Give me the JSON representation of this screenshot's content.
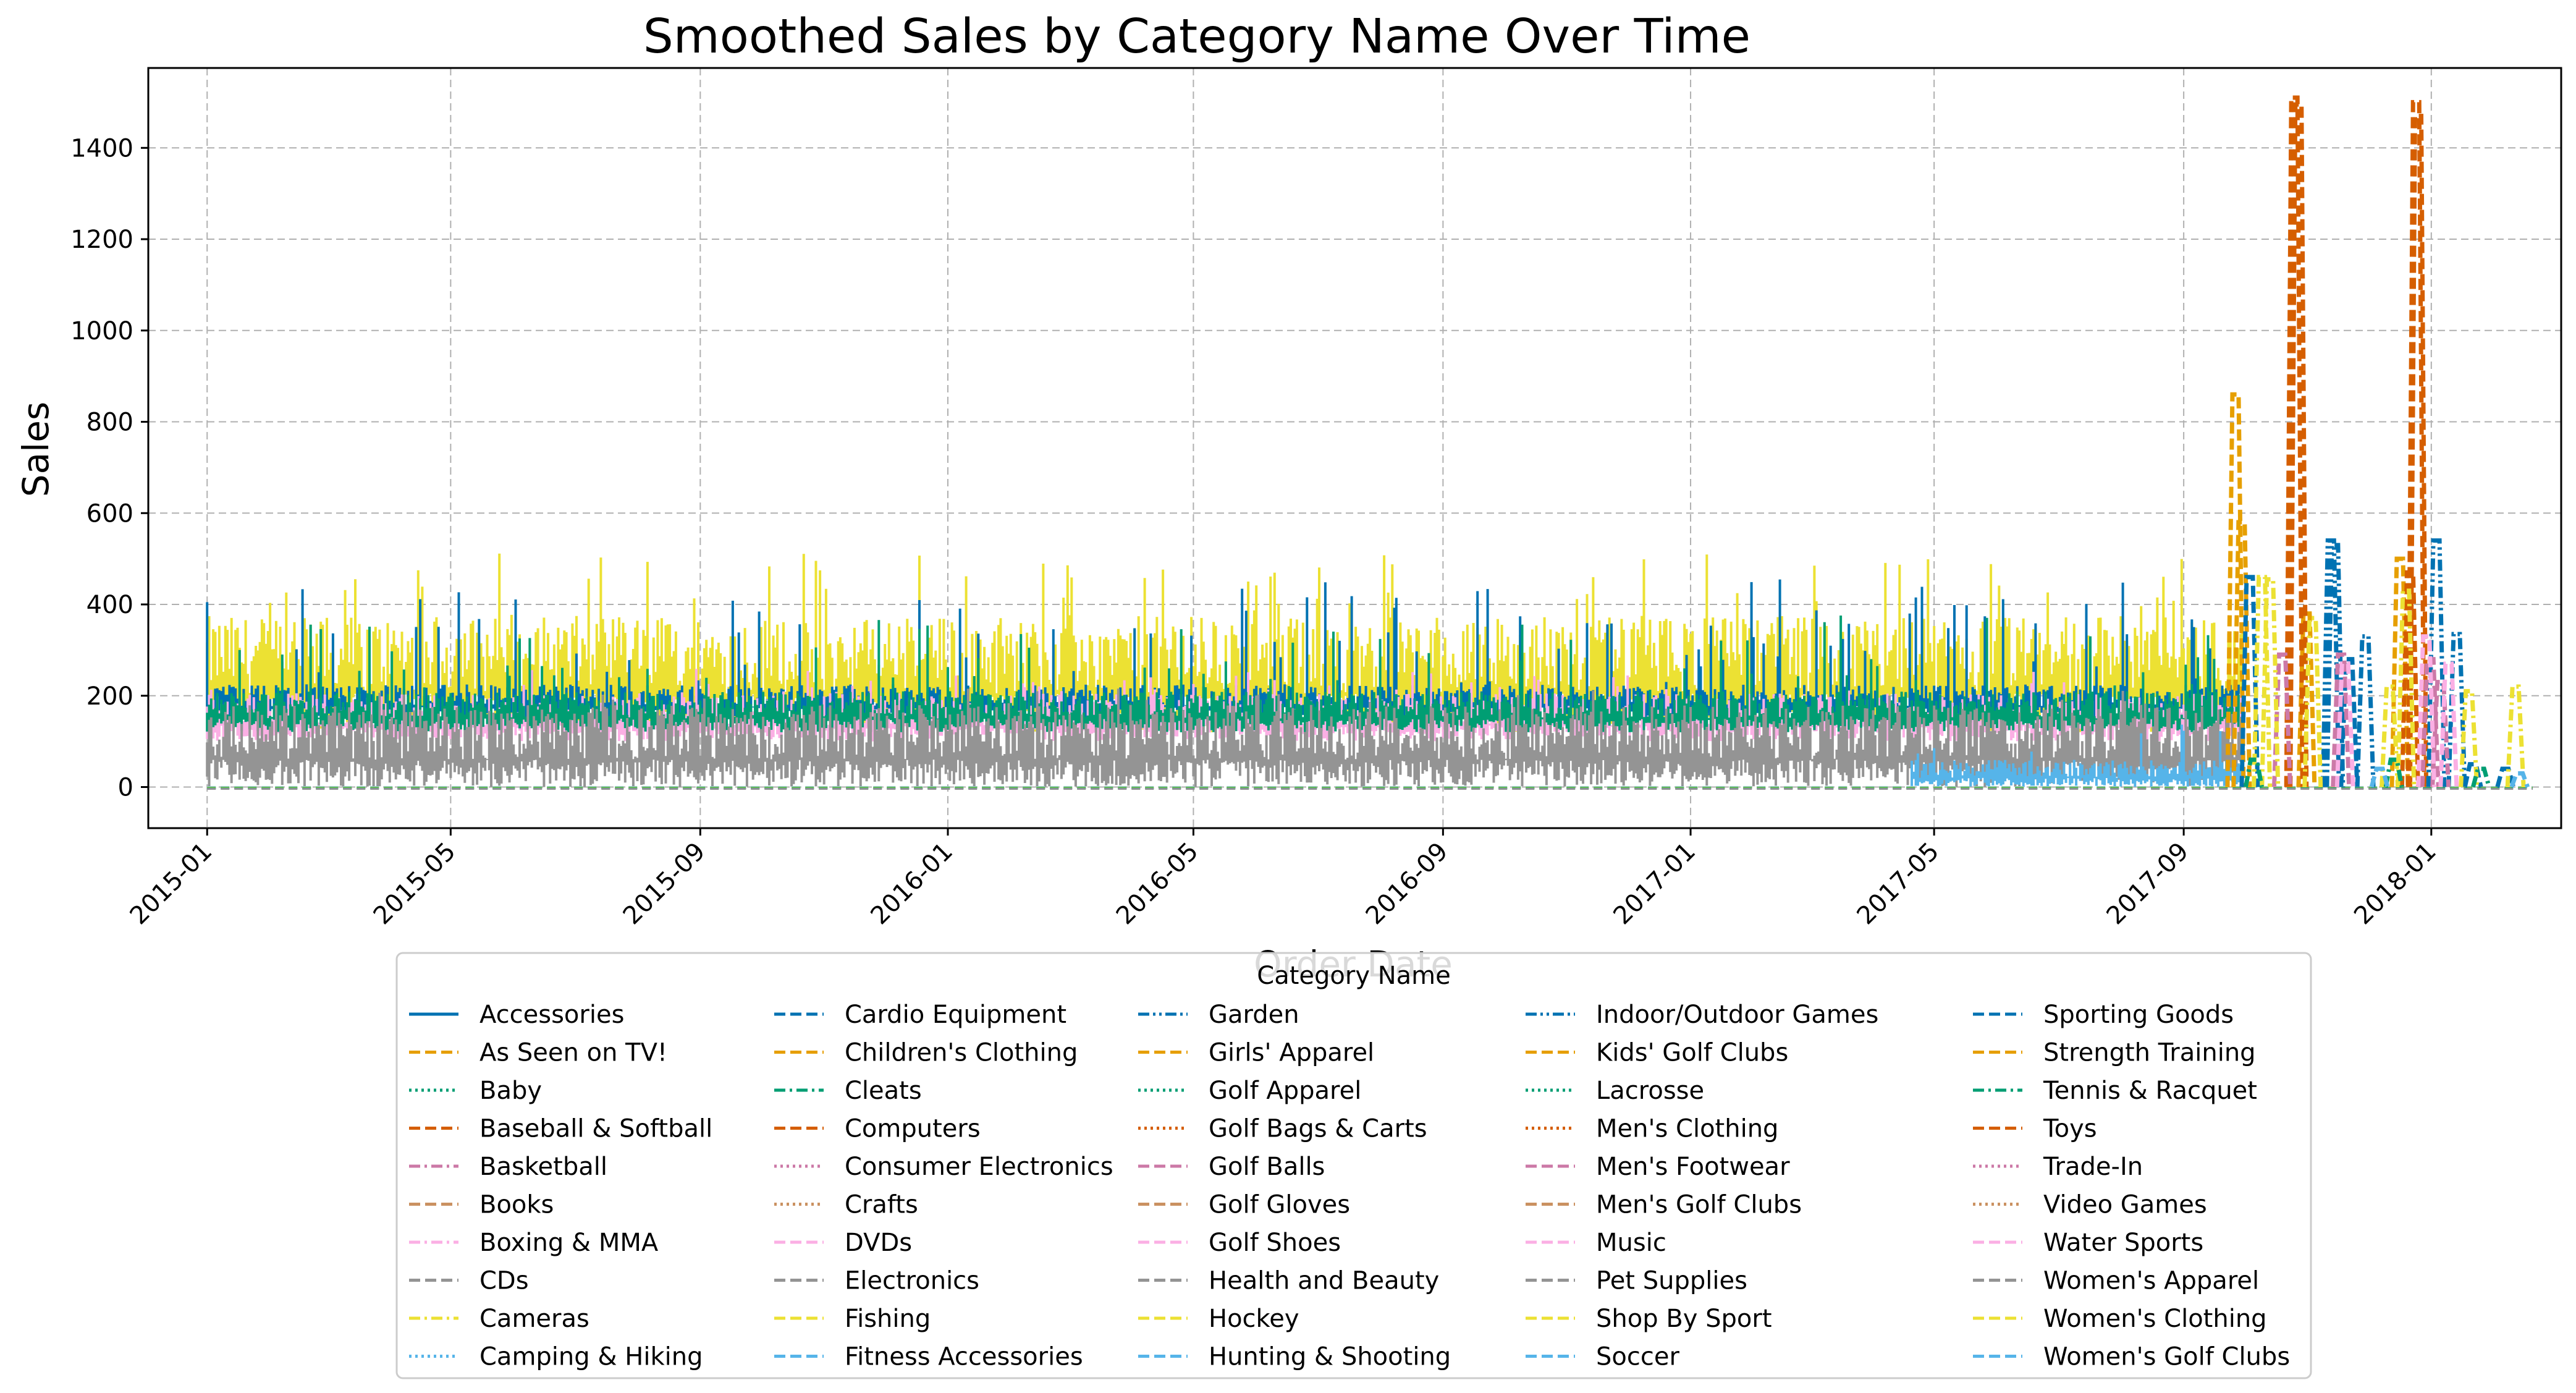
{
  "chart_data": {
    "type": "line",
    "title": "Smoothed Sales by Category Name Over Time",
    "xlabel": "Order Date",
    "ylabel": "Sales",
    "x_ticks": [
      "2015-01",
      "2015-05",
      "2015-09",
      "2016-01",
      "2016-05",
      "2016-09",
      "2017-01",
      "2017-05",
      "2017-09",
      "2018-01"
    ],
    "x_range": [
      "2014-12-03",
      "2018-03-06"
    ],
    "y_ticks": [
      0,
      200,
      400,
      600,
      800,
      1000,
      1200,
      1400
    ],
    "ylim": [
      -90,
      1575
    ],
    "grid": true,
    "legend_title": "Category Name",
    "legend_placement": "bottom-center",
    "legend_columns": 5,
    "series_meta": [
      {
        "name": "Accessories",
        "color": "#0072b2",
        "dash": "solid"
      },
      {
        "name": "As Seen on  TV!",
        "color": "#e69f00",
        "dash": "dashed"
      },
      {
        "name": "Baby",
        "color": "#009e73",
        "dash": "dotted"
      },
      {
        "name": "Baseball & Softball",
        "color": "#d55e00",
        "dash": "dashed"
      },
      {
        "name": "Basketball",
        "color": "#cc79a7",
        "dash": "dashdot"
      },
      {
        "name": "Books",
        "color": "#ca9161",
        "dash": "dashed"
      },
      {
        "name": "Boxing & MMA",
        "color": "#fbafe4",
        "dash": "dashdot"
      },
      {
        "name": "CDs",
        "color": "#949494",
        "dash": "dashed"
      },
      {
        "name": "Cameras",
        "color": "#ece133",
        "dash": "dashdot"
      },
      {
        "name": "Camping & Hiking",
        "color": "#56b4e9",
        "dash": "dotted"
      },
      {
        "name": "Cardio Equipment",
        "color": "#0072b2",
        "dash": "dashed"
      },
      {
        "name": "Children's Clothing",
        "color": "#e69f00",
        "dash": "dashed"
      },
      {
        "name": "Cleats",
        "color": "#009e73",
        "dash": "dashdot"
      },
      {
        "name": "Computers",
        "color": "#d55e00",
        "dash": "dashed"
      },
      {
        "name": "Consumer Electronics",
        "color": "#cc79a7",
        "dash": "dotted"
      },
      {
        "name": "Crafts",
        "color": "#ca9161",
        "dash": "dotted"
      },
      {
        "name": "DVDs",
        "color": "#fbafe4",
        "dash": "dashed"
      },
      {
        "name": "Electronics",
        "color": "#949494",
        "dash": "dashed"
      },
      {
        "name": "Fishing",
        "color": "#ece133",
        "dash": "dashed"
      },
      {
        "name": "Fitness Accessories",
        "color": "#56b4e9",
        "dash": "dashed"
      },
      {
        "name": "Garden",
        "color": "#0072b2",
        "dash": "dashdotdot"
      },
      {
        "name": "Girls' Apparel",
        "color": "#e69f00",
        "dash": "dashed"
      },
      {
        "name": "Golf Apparel",
        "color": "#009e73",
        "dash": "dotted"
      },
      {
        "name": "Golf Bags & Carts",
        "color": "#d55e00",
        "dash": "dotted"
      },
      {
        "name": "Golf Balls",
        "color": "#cc79a7",
        "dash": "dashed"
      },
      {
        "name": "Golf Gloves",
        "color": "#ca9161",
        "dash": "dashed"
      },
      {
        "name": "Golf Shoes",
        "color": "#fbafe4",
        "dash": "dashed"
      },
      {
        "name": "Health and Beauty",
        "color": "#949494",
        "dash": "dashed"
      },
      {
        "name": "Hockey",
        "color": "#ece133",
        "dash": "dashed"
      },
      {
        "name": "Hunting & Shooting",
        "color": "#56b4e9",
        "dash": "dashed"
      },
      {
        "name": "Indoor/Outdoor Games",
        "color": "#0072b2",
        "dash": "dashdotdot"
      },
      {
        "name": "Kids' Golf Clubs",
        "color": "#e69f00",
        "dash": "dashed"
      },
      {
        "name": "Lacrosse",
        "color": "#009e73",
        "dash": "dotted"
      },
      {
        "name": "Men's Clothing",
        "color": "#d55e00",
        "dash": "dotted"
      },
      {
        "name": "Men's Footwear",
        "color": "#cc79a7",
        "dash": "dashed"
      },
      {
        "name": "Men's Golf Clubs",
        "color": "#ca9161",
        "dash": "dashed"
      },
      {
        "name": "Music",
        "color": "#fbafe4",
        "dash": "dashed"
      },
      {
        "name": "Pet Supplies",
        "color": "#949494",
        "dash": "dashed"
      },
      {
        "name": "Shop By Sport",
        "color": "#ece133",
        "dash": "dashed"
      },
      {
        "name": "Soccer",
        "color": "#56b4e9",
        "dash": "dashed"
      },
      {
        "name": "Sporting Goods",
        "color": "#0072b2",
        "dash": "dashed"
      },
      {
        "name": "Strength Training",
        "color": "#e69f00",
        "dash": "dashed"
      },
      {
        "name": "Tennis & Racquet",
        "color": "#009e73",
        "dash": "dashdot"
      },
      {
        "name": "Toys",
        "color": "#d55e00",
        "dash": "dashed"
      },
      {
        "name": "Trade-In",
        "color": "#cc79a7",
        "dash": "dotted"
      },
      {
        "name": "Video Games",
        "color": "#ca9161",
        "dash": "dotted"
      },
      {
        "name": "Water Sports",
        "color": "#fbafe4",
        "dash": "dashed"
      },
      {
        "name": "Women's Apparel",
        "color": "#949494",
        "dash": "dashed"
      },
      {
        "name": "Women's Clothing",
        "color": "#ece133",
        "dash": "dashed"
      },
      {
        "name": "Women's Golf Clubs",
        "color": "#56b4e9",
        "dash": "dashed"
      }
    ],
    "dense_series": [
      {
        "name": "Cameras",
        "color": "#ece133",
        "x_start": "2015-01-01",
        "x_end": "2017-09-30",
        "min": 120,
        "typical": 290,
        "max": 520
      },
      {
        "name": "Accessories",
        "color": "#0072b2",
        "x_start": "2015-01-01",
        "x_end": "2017-09-30",
        "min": 150,
        "typical": 200,
        "max": 460
      },
      {
        "name": "Boxing & MMA",
        "color": "#fbafe4",
        "x_start": "2015-01-01",
        "x_end": "2017-09-30",
        "min": 100,
        "typical": 170,
        "max": 260
      },
      {
        "name": "Cleats",
        "color": "#009e73",
        "x_start": "2015-01-01",
        "x_end": "2017-09-30",
        "min": 120,
        "typical": 180,
        "max": 380
      },
      {
        "name": "CDs",
        "color": "#949494",
        "x_start": "2015-01-01",
        "x_end": "2017-09-30",
        "min": 0,
        "typical": 120,
        "max": 220
      },
      {
        "name": "Camping & Hiking",
        "color": "#56b4e9",
        "x_start": "2017-04-20",
        "x_end": "2017-09-30",
        "min": 0,
        "typical": 40,
        "max": 140
      }
    ],
    "spikes": [
      {
        "name": "Kids' Golf Clubs",
        "color": "#e69f00",
        "dash": "dashed",
        "points": [
          [
            "2017-09-25",
            860
          ],
          [
            "2017-09-28",
            580
          ],
          [
            "2017-10-30",
            380
          ],
          [
            "2017-12-15",
            500
          ]
        ]
      },
      {
        "name": "Baseball & Softball",
        "color": "#d55e00",
        "dash": "dashed",
        "points": [
          [
            "2017-10-24",
            1510
          ],
          [
            "2017-10-26",
            1495
          ],
          [
            "2017-12-23",
            1500
          ],
          [
            "2017-12-24",
            1470
          ],
          [
            "2017-12-20",
            470
          ]
        ]
      },
      {
        "name": "Garden",
        "color": "#0072b2",
        "dash": "dashdotdot",
        "points": [
          [
            "2017-11-11",
            540
          ],
          [
            "2017-11-13",
            530
          ],
          [
            "2017-11-28",
            330
          ],
          [
            "2018-01-02",
            540
          ],
          [
            "2018-01-12",
            335
          ]
        ]
      },
      {
        "name": "Sporting Goods",
        "color": "#0072b2",
        "dash": "dashed",
        "points": [
          [
            "2017-10-02",
            460
          ],
          [
            "2017-11-20",
            280
          ],
          [
            "2018-01-20",
            50
          ],
          [
            "2018-02-05",
            40
          ]
        ]
      },
      {
        "name": "Golf Balls",
        "color": "#cc79a7",
        "dash": "dashed",
        "points": [
          [
            "2017-10-18",
            290
          ],
          [
            "2017-11-16",
            290
          ],
          [
            "2017-12-30",
            280
          ],
          [
            "2018-01-04",
            230
          ]
        ]
      },
      {
        "name": "Golf Shoes",
        "color": "#fbafe4",
        "dash": "dashed",
        "points": [
          [
            "2017-11-18",
            270
          ],
          [
            "2017-12-28",
            330
          ],
          [
            "2018-01-08",
            270
          ]
        ]
      },
      {
        "name": "Cameras",
        "color": "#ece133",
        "dash": "dashdot",
        "points": [
          [
            "2017-10-08",
            460
          ],
          [
            "2017-10-12",
            455
          ],
          [
            "2017-11-02",
            370
          ],
          [
            "2017-12-10",
            220
          ],
          [
            "2017-12-18",
            430
          ],
          [
            "2018-01-18",
            210
          ],
          [
            "2018-02-10",
            220
          ]
        ]
      },
      {
        "name": "Cleats",
        "color": "#009e73",
        "dash": "dashdot",
        "points": [
          [
            "2017-10-04",
            60
          ],
          [
            "2017-12-12",
            60
          ],
          [
            "2018-01-24",
            40
          ]
        ]
      },
      {
        "name": "Fitness Accessories",
        "color": "#56b4e9",
        "dash": "dashed",
        "points": [
          [
            "2017-12-05",
            40
          ],
          [
            "2018-02-12",
            30
          ]
        ]
      }
    ]
  }
}
